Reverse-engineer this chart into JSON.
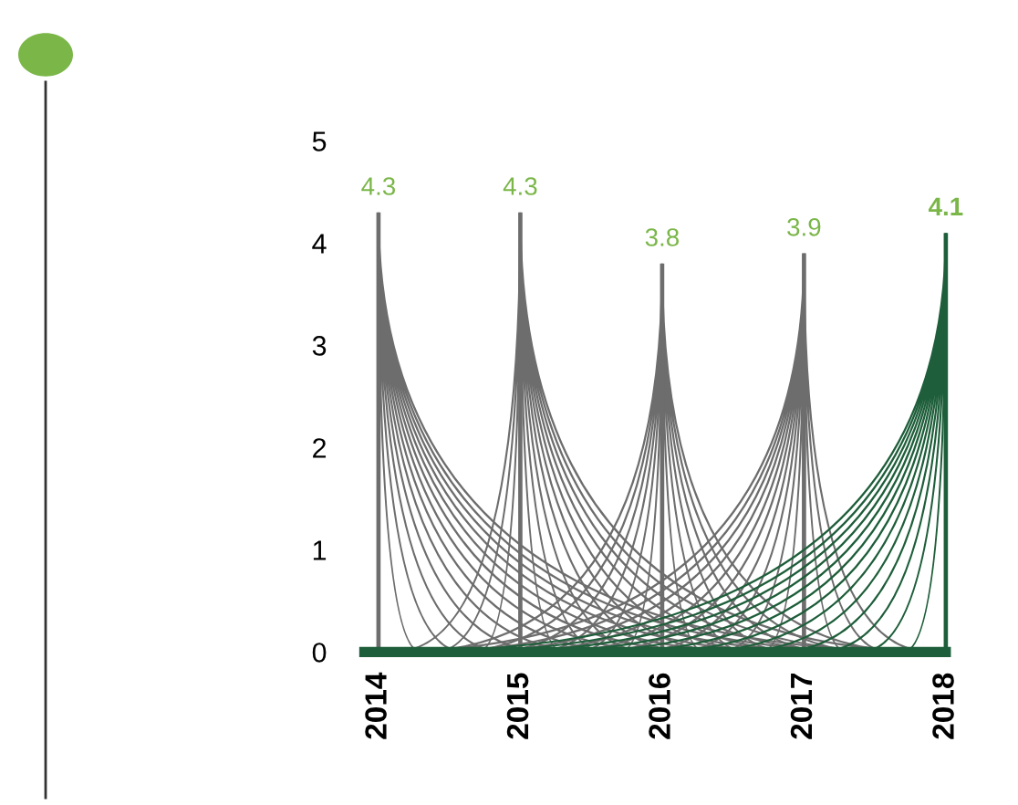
{
  "chart_data": {
    "type": "bar",
    "categories": [
      "2014",
      "2015",
      "2016",
      "2017",
      "2018"
    ],
    "values": [
      4.3,
      4.3,
      3.8,
      3.9,
      4.1
    ],
    "colors": [
      "#6d6d6d",
      "#6d6d6d",
      "#6d6d6d",
      "#6d6d6d",
      "#1e5e3a"
    ],
    "ylim": [
      0,
      5
    ],
    "yticks": [
      0,
      1,
      2,
      3,
      4,
      5
    ],
    "data_labels": true,
    "grid": false
  }
}
